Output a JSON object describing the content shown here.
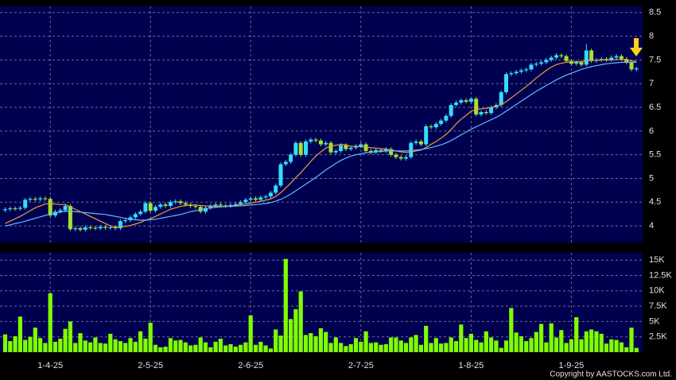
{
  "chart_data": {
    "type": "candlestick",
    "categories": [
      null,
      null,
      null,
      null,
      null,
      null,
      null,
      null,
      null,
      "1-4-25",
      null,
      null,
      null,
      null,
      null,
      null,
      null,
      null,
      null,
      null,
      null,
      null,
      null,
      null,
      null,
      null,
      null,
      null,
      null,
      "2-5-25",
      null,
      null,
      null,
      null,
      null,
      null,
      null,
      null,
      null,
      null,
      null,
      null,
      null,
      null,
      null,
      null,
      null,
      null,
      null,
      "2-6-25",
      null,
      null,
      null,
      null,
      null,
      null,
      null,
      null,
      null,
      null,
      null,
      null,
      null,
      null,
      null,
      null,
      null,
      null,
      null,
      null,
      null,
      "2-7-25",
      null,
      null,
      null,
      null,
      null,
      null,
      null,
      null,
      null,
      null,
      null,
      null,
      null,
      null,
      null,
      null,
      null,
      null,
      null,
      null,
      null,
      "1-8-25",
      null,
      null,
      null,
      null,
      null,
      null,
      null,
      null,
      null,
      null,
      null,
      null,
      null,
      null,
      null,
      null,
      null,
      null,
      null,
      "1-9-25",
      null,
      null,
      null,
      null,
      null,
      null,
      null,
      null,
      null,
      null,
      null,
      null,
      null
    ],
    "open": [
      4.33,
      4.35,
      4.37,
      4.36,
      4.38,
      4.55,
      4.57,
      4.56,
      4.58,
      4.57,
      4.22,
      4.3,
      4.33,
      4.42,
      3.93,
      3.95,
      3.92,
      3.97,
      3.96,
      3.95,
      3.98,
      3.96,
      3.97,
      3.95,
      4.1,
      4.12,
      4.18,
      4.25,
      4.3,
      4.48,
      4.32,
      4.4,
      4.45,
      4.42,
      4.5,
      4.52,
      4.48,
      4.45,
      4.42,
      4.4,
      4.3,
      4.38,
      4.42,
      4.45,
      4.43,
      4.42,
      4.44,
      4.46,
      4.5,
      4.55,
      4.58,
      4.55,
      4.6,
      4.62,
      4.7,
      4.85,
      5.3,
      5.35,
      5.5,
      5.75,
      5.5,
      5.78,
      5.82,
      5.8,
      5.72,
      5.75,
      5.55,
      5.58,
      5.7,
      5.62,
      5.65,
      5.68,
      5.72,
      5.58,
      5.55,
      5.6,
      5.58,
      5.62,
      5.5,
      5.45,
      5.42,
      5.45,
      5.75,
      5.78,
      5.72,
      6.1,
      6.08,
      6.15,
      6.22,
      6.32,
      6.55,
      6.6,
      6.65,
      6.62,
      6.68,
      6.35,
      6.4,
      6.38,
      6.5,
      6.55,
      6.82,
      7.2,
      7.22,
      7.25,
      7.28,
      7.3,
      7.4,
      7.42,
      7.45,
      7.5,
      7.55,
      7.6,
      7.58,
      7.48,
      7.42,
      7.45,
      7.4,
      7.7,
      7.48,
      7.5,
      7.52,
      7.5,
      7.55,
      7.58,
      7.52,
      7.45,
      7.3
    ],
    "high": [
      4.39,
      4.41,
      4.41,
      4.42,
      4.59,
      4.61,
      4.61,
      4.62,
      4.62,
      4.61,
      4.34,
      4.37,
      4.46,
      4.46,
      3.99,
      3.99,
      4.01,
      4.01,
      4.0,
      4.02,
      4.02,
      4.01,
      4.01,
      4.14,
      4.16,
      4.22,
      4.29,
      4.34,
      4.52,
      4.52,
      4.44,
      4.49,
      4.49,
      4.54,
      4.56,
      4.56,
      4.52,
      4.49,
      4.46,
      4.44,
      4.42,
      4.46,
      4.49,
      4.49,
      4.47,
      4.48,
      4.5,
      4.54,
      4.59,
      4.62,
      4.62,
      4.64,
      4.66,
      4.74,
      4.89,
      5.34,
      5.39,
      5.54,
      5.79,
      5.79,
      5.82,
      5.86,
      5.86,
      5.84,
      5.79,
      5.79,
      5.62,
      5.74,
      5.74,
      5.69,
      5.72,
      5.76,
      5.76,
      5.62,
      5.64,
      5.64,
      5.66,
      5.66,
      5.54,
      5.49,
      5.49,
      5.79,
      5.82,
      5.82,
      6.14,
      6.14,
      6.19,
      6.26,
      6.36,
      6.59,
      6.64,
      6.69,
      6.69,
      6.72,
      6.72,
      6.44,
      6.44,
      6.54,
      6.59,
      6.86,
      7.24,
      7.26,
      7.29,
      7.32,
      7.34,
      7.44,
      7.46,
      7.49,
      7.54,
      7.59,
      7.64,
      7.64,
      7.62,
      7.52,
      7.49,
      7.49,
      7.84,
      7.74,
      7.54,
      7.56,
      7.56,
      7.59,
      7.62,
      7.62,
      7.56,
      7.49,
      7.36
    ],
    "low": [
      4.29,
      4.31,
      4.32,
      4.32,
      4.34,
      4.51,
      4.52,
      4.52,
      4.53,
      4.18,
      4.18,
      4.26,
      4.29,
      3.89,
      3.89,
      3.88,
      3.88,
      3.92,
      3.91,
      3.91,
      3.92,
      3.92,
      3.91,
      3.91,
      4.06,
      4.08,
      4.14,
      4.21,
      4.26,
      4.28,
      4.28,
      4.36,
      4.38,
      4.38,
      4.46,
      4.44,
      4.41,
      4.38,
      4.36,
      4.26,
      4.26,
      4.34,
      4.38,
      4.39,
      4.38,
      4.38,
      4.4,
      4.42,
      4.46,
      4.51,
      4.51,
      4.51,
      4.56,
      4.58,
      4.66,
      4.81,
      5.26,
      5.31,
      5.46,
      5.46,
      5.46,
      5.74,
      5.76,
      5.68,
      5.68,
      5.51,
      5.51,
      5.54,
      5.58,
      5.58,
      5.61,
      5.64,
      5.54,
      5.51,
      5.51,
      5.54,
      5.54,
      5.46,
      5.41,
      5.38,
      5.38,
      5.41,
      5.71,
      5.68,
      5.68,
      6.04,
      6.04,
      6.11,
      6.18,
      6.28,
      6.51,
      6.56,
      6.58,
      6.58,
      6.31,
      6.31,
      6.34,
      6.34,
      6.46,
      6.51,
      6.78,
      7.16,
      7.18,
      7.21,
      7.24,
      7.26,
      7.36,
      7.38,
      7.41,
      7.46,
      7.51,
      7.54,
      7.44,
      7.38,
      7.38,
      7.36,
      7.36,
      7.44,
      7.44,
      7.46,
      7.46,
      7.46,
      7.51,
      7.48,
      7.41,
      7.26,
      7.26
    ],
    "close": [
      4.35,
      4.37,
      4.36,
      4.38,
      4.55,
      4.57,
      4.56,
      4.58,
      4.57,
      4.22,
      4.3,
      4.33,
      4.42,
      3.93,
      3.95,
      3.92,
      3.97,
      3.96,
      3.95,
      3.98,
      3.96,
      3.97,
      3.95,
      4.1,
      4.12,
      4.18,
      4.25,
      4.3,
      4.48,
      4.32,
      4.4,
      4.45,
      4.42,
      4.5,
      4.52,
      4.48,
      4.45,
      4.42,
      4.4,
      4.3,
      4.38,
      4.42,
      4.45,
      4.43,
      4.42,
      4.44,
      4.46,
      4.5,
      4.55,
      4.58,
      4.55,
      4.6,
      4.62,
      4.7,
      4.85,
      5.3,
      5.35,
      5.5,
      5.75,
      5.5,
      5.78,
      5.82,
      5.8,
      5.72,
      5.75,
      5.55,
      5.58,
      5.7,
      5.62,
      5.65,
      5.68,
      5.72,
      5.58,
      5.55,
      5.6,
      5.58,
      5.62,
      5.5,
      5.45,
      5.42,
      5.45,
      5.75,
      5.78,
      5.72,
      6.1,
      6.08,
      6.15,
      6.22,
      6.32,
      6.55,
      6.6,
      6.65,
      6.62,
      6.68,
      6.35,
      6.4,
      6.38,
      6.5,
      6.55,
      6.82,
      7.2,
      7.22,
      7.25,
      7.28,
      7.3,
      7.4,
      7.42,
      7.45,
      7.5,
      7.55,
      7.6,
      7.58,
      7.48,
      7.42,
      7.45,
      7.4,
      7.7,
      7.48,
      7.5,
      7.52,
      7.5,
      7.55,
      7.58,
      7.52,
      7.45,
      7.3,
      7.32
    ],
    "up_color": "#33ddff",
    "down_color": "#a6e22e",
    "series": [
      {
        "color": "#e8a040",
        "values": [
          4.05,
          4.1,
          4.15,
          4.2,
          4.26,
          4.32,
          4.38,
          4.42,
          4.46,
          4.47,
          4.46,
          4.45,
          4.45,
          4.4,
          4.35,
          4.3,
          4.25,
          4.2,
          4.15,
          4.1,
          4.05,
          4.0,
          3.97,
          3.98,
          3.99,
          4.01,
          4.04,
          4.07,
          4.12,
          4.15,
          4.2,
          4.25,
          4.3,
          4.35,
          4.38,
          4.41,
          4.43,
          4.44,
          4.44,
          4.43,
          4.42,
          4.42,
          4.41,
          4.41,
          4.41,
          4.42,
          4.43,
          4.45,
          4.46,
          4.48,
          4.5,
          4.52,
          4.54,
          4.57,
          4.62,
          4.7,
          4.8,
          4.9,
          5.02,
          5.12,
          5.24,
          5.36,
          5.47,
          5.56,
          5.64,
          5.68,
          5.7,
          5.72,
          5.71,
          5.68,
          5.68,
          5.67,
          5.66,
          5.65,
          5.64,
          5.63,
          5.62,
          5.6,
          5.58,
          5.56,
          5.55,
          5.56,
          5.58,
          5.6,
          5.65,
          5.72,
          5.78,
          5.85,
          5.93,
          6.03,
          6.15,
          6.25,
          6.33,
          6.42,
          6.45,
          6.47,
          6.48,
          6.5,
          6.52,
          6.56,
          6.62,
          6.7,
          6.78,
          6.86,
          6.94,
          7.03,
          7.12,
          7.2,
          7.28,
          7.35,
          7.4,
          7.43,
          7.45,
          7.46,
          7.46,
          7.46,
          7.48,
          7.49,
          7.49,
          7.5,
          7.5,
          7.5,
          7.51,
          7.51,
          7.5,
          7.48,
          7.47
        ]
      },
      {
        "color": "#66b8ff",
        "values": [
          4.0,
          4.02,
          4.05,
          4.07,
          4.1,
          4.13,
          4.16,
          4.19,
          4.22,
          4.25,
          4.27,
          4.29,
          4.31,
          4.31,
          4.3,
          4.29,
          4.28,
          4.27,
          4.26,
          4.25,
          4.24,
          4.22,
          4.2,
          4.18,
          4.16,
          4.14,
          4.13,
          4.12,
          4.12,
          4.13,
          4.14,
          4.16,
          4.18,
          4.2,
          4.22,
          4.24,
          4.27,
          4.3,
          4.32,
          4.34,
          4.36,
          4.38,
          4.39,
          4.4,
          4.41,
          4.41,
          4.42,
          4.42,
          4.43,
          4.44,
          4.45,
          4.46,
          4.47,
          4.49,
          4.52,
          4.56,
          4.61,
          4.67,
          4.74,
          4.81,
          4.88,
          4.95,
          5.02,
          5.1,
          5.18,
          5.25,
          5.32,
          5.38,
          5.43,
          5.47,
          5.5,
          5.52,
          5.54,
          5.55,
          5.56,
          5.57,
          5.58,
          5.58,
          5.58,
          5.58,
          5.58,
          5.59,
          5.6,
          5.61,
          5.63,
          5.65,
          5.68,
          5.71,
          5.75,
          5.8,
          5.86,
          5.92,
          5.98,
          6.04,
          6.09,
          6.14,
          6.19,
          6.24,
          6.29,
          6.35,
          6.42,
          6.49,
          6.56,
          6.63,
          6.7,
          6.77,
          6.84,
          6.9,
          6.96,
          7.02,
          7.08,
          7.13,
          7.18,
          7.22,
          7.26,
          7.3,
          7.33,
          7.36,
          7.38,
          7.4,
          7.42,
          7.43,
          7.44,
          7.45,
          7.45,
          7.45,
          7.45
        ]
      }
    ],
    "ylim": [
      3.65,
      8.63
    ],
    "yticks": [
      4,
      4.5,
      5,
      5.5,
      6,
      6.5,
      7,
      7.5,
      8,
      8.5
    ],
    "grid": true,
    "volume": {
      "color": "#80ff00",
      "ylim": [
        0,
        16200
      ],
      "yticks": [
        {
          "value": 2500,
          "label": "2.5K"
        },
        {
          "value": 5000,
          "label": "5K"
        },
        {
          "value": 7500,
          "label": "7.5K"
        },
        {
          "value": 10000,
          "label": "10K"
        },
        {
          "value": 12500,
          "label": "12.5K"
        },
        {
          "value": 15000,
          "label": "15K"
        }
      ],
      "values": [
        2900,
        1800,
        2600,
        5800,
        2000,
        2500,
        4000,
        2300,
        1500,
        9600,
        1700,
        2200,
        3800,
        5000,
        1500,
        3100,
        1900,
        1600,
        2400,
        1500,
        1400,
        3000,
        2100,
        1800,
        1500,
        2300,
        1700,
        3400,
        2200,
        4800,
        1200,
        800,
        900,
        2300,
        1900,
        2000,
        1600,
        1100,
        1200,
        2400,
        1600,
        800,
        1700,
        2200,
        1100,
        1300,
        900,
        1200,
        1600,
        6000,
        1200,
        1700,
        1100,
        600,
        3700,
        2700,
        15200,
        5400,
        7000,
        9900,
        2800,
        3100,
        2600,
        3900,
        3300,
        1500,
        2400,
        1500,
        1000,
        1300,
        2300,
        1700,
        3400,
        1500,
        1600,
        1200,
        1300,
        2400,
        2400,
        1900,
        1500,
        2400,
        2800,
        1200,
        4300,
        1500,
        2300,
        1400,
        1500,
        2400,
        1800,
        4500,
        2300,
        3000,
        2000,
        1600,
        3400,
        2400,
        1900,
        700,
        1900,
        7200,
        3200,
        2600,
        1800,
        2300,
        3300,
        4600,
        1600,
        4700,
        2400,
        3600,
        1500,
        2100,
        5700,
        2100,
        3400,
        3700,
        3400,
        3000,
        1400,
        2100,
        2000,
        1600,
        800,
        4000,
        700
      ]
    }
  },
  "footer": {
    "copyright": "Copyright by AASTOCKS.com Ltd."
  }
}
